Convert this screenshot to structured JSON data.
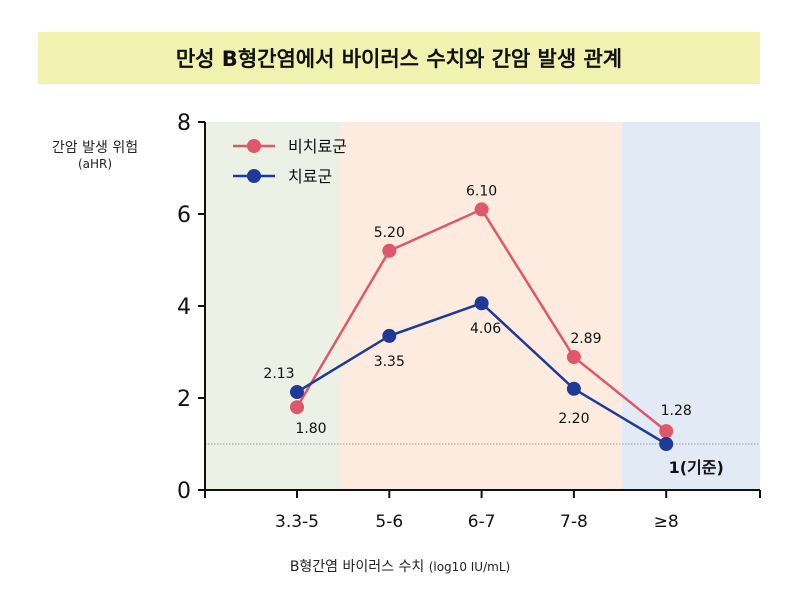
{
  "chart_data": {
    "type": "line",
    "title": "만성 B형간염에서 바이러스 수치와 간암 발생 관계",
    "ylabel": "간암 발생 위험",
    "ylabel_unit": "(aHR)",
    "xlabel": "B형간염 바이러스 수치",
    "xlabel_unit": "(log10 IU/mL)",
    "ylim": [
      0,
      8
    ],
    "yticks": [
      "0",
      "2",
      "4",
      "6",
      "8"
    ],
    "categories": [
      "3.3-5",
      "5-6",
      "6-7",
      "7-8",
      "≥8"
    ],
    "reference_line": 1,
    "reference_label": "1(기준)",
    "legend_placement": "top-left",
    "bands": [
      {
        "from": 0,
        "to": 1,
        "color": "#ebf1e4"
      },
      {
        "from": 1,
        "to": 4,
        "color": "#fdebe0"
      },
      {
        "from": 4,
        "to": 5,
        "color": "#e2eaf6"
      }
    ],
    "series": [
      {
        "name": "비치료군",
        "color": "#e0566a",
        "values": [
          1.8,
          5.2,
          6.1,
          2.89,
          1.28
        ],
        "labels": [
          "1.80",
          "5.20",
          "6.10",
          "2.89",
          "1.28"
        ]
      },
      {
        "name": "치료군",
        "color": "#1f3a96",
        "values": [
          2.13,
          3.35,
          4.06,
          2.2,
          1
        ],
        "labels": [
          "2.13",
          "3.35",
          "4.06",
          "2.20",
          ""
        ]
      }
    ]
  }
}
